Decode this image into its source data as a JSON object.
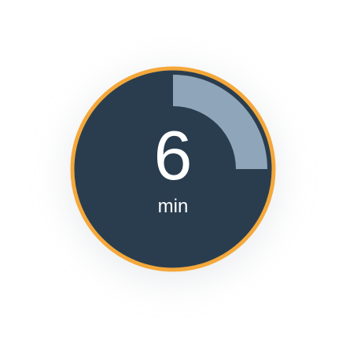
{
  "timer": {
    "value": "6",
    "unit": "min",
    "progress": 0.25,
    "colors": {
      "face": "#2a3d4f",
      "ring": "#f4a83a",
      "progress": "#8fa5ba",
      "text": "#ffffff"
    }
  }
}
